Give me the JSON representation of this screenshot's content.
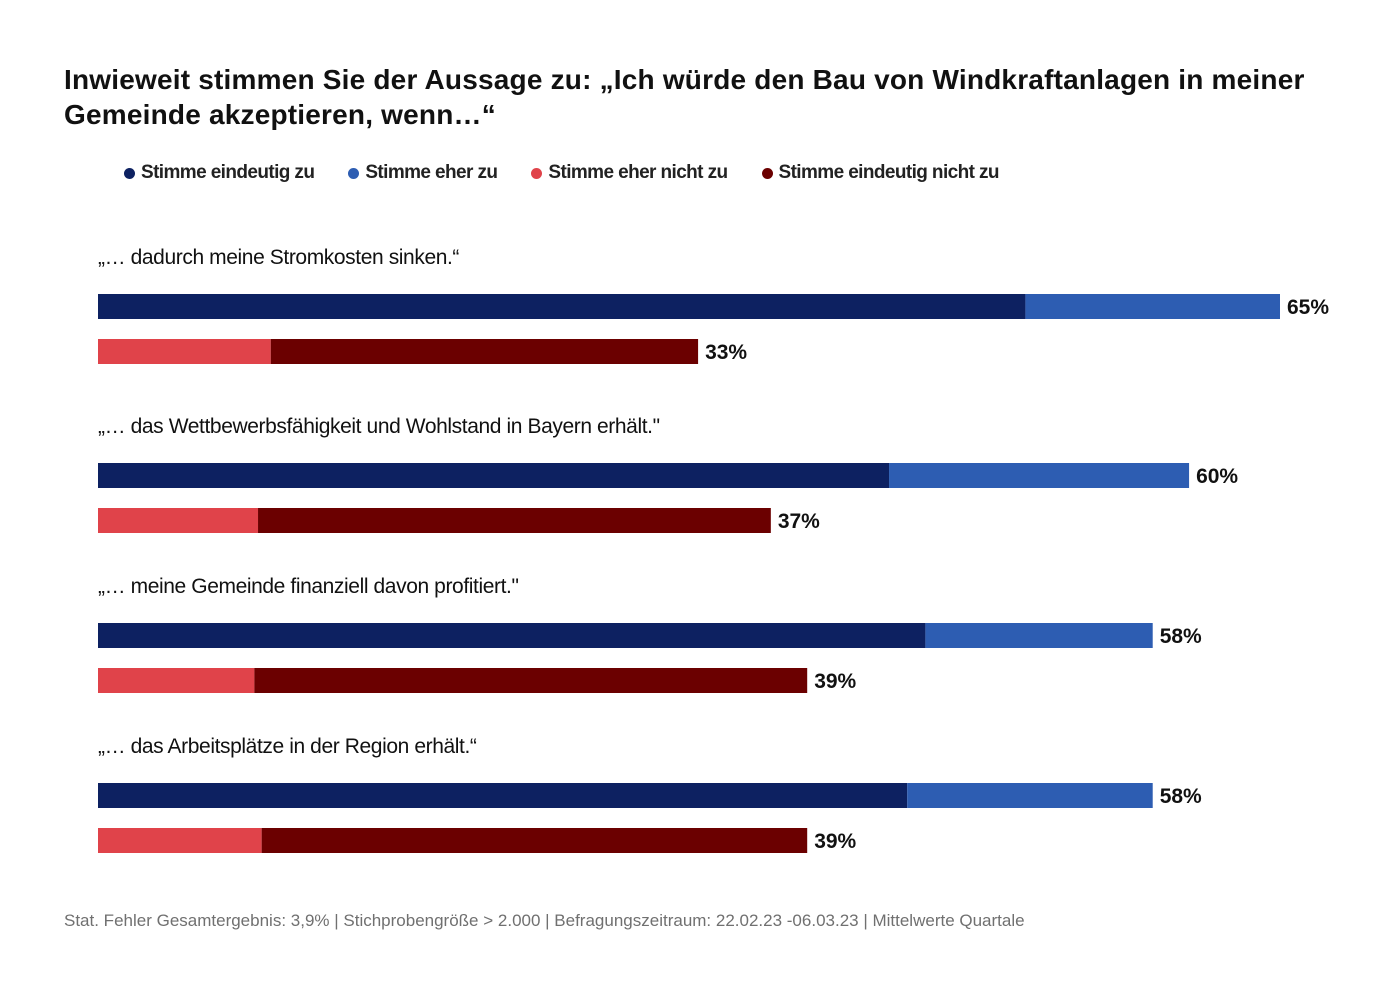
{
  "chart_data": {
    "type": "bar",
    "orientation": "horizontal",
    "stacked": true,
    "title": "Inwieweit stimmen Sie der Aussage zu: „Ich würde den Bau von Windkraftanlagen in meiner Gemeinde akzeptieren, wenn…“",
    "legend_position": "top",
    "legend": [
      {
        "name": "Stimme eindeutig zu",
        "color": "#0d2161"
      },
      {
        "name": "Stimme eher zu",
        "color": "#2d5db2"
      },
      {
        "name": "Stimme eher nicht zu",
        "color": "#e0434a"
      },
      {
        "name": "Stimme eindeutig nicht zu",
        "color": "#6b0000"
      }
    ],
    "x_max": 65,
    "categories": [
      "„… dadurch meine Stromkosten sinken.“",
      "„… das Wettbewerbsfähigkeit und Wohlstand in Bayern erhält.\"",
      "„… meine Gemeinde finanziell davon profitiert.\"",
      "„… das Arbeitsplätze in der Region erhält.“"
    ],
    "groups": [
      {
        "agree": {
          "segments": [
            51,
            14
          ],
          "total_label": "65%"
        },
        "disagree": {
          "segments": [
            9.5,
            23.5
          ],
          "total_label": "33%"
        }
      },
      {
        "agree": {
          "segments": [
            43.5,
            16.5
          ],
          "total_label": "60%"
        },
        "disagree": {
          "segments": [
            8.8,
            28.2
          ],
          "total_label": "37%"
        }
      },
      {
        "agree": {
          "segments": [
            45.5,
            12.5
          ],
          "total_label": "58%"
        },
        "disagree": {
          "segments": [
            8.6,
            30.4
          ],
          "total_label": "39%"
        }
      },
      {
        "agree": {
          "segments": [
            44.5,
            13.5
          ],
          "total_label": "58%"
        },
        "disagree": {
          "segments": [
            9,
            30
          ],
          "total_label": "39%"
        }
      }
    ]
  },
  "footer": "Stat. Fehler Gesamtergebnis:  3,9% | Stichprobengröße  > 2.000 | Befragungszeitraum:  22.02.23 -06.03.23 | Mittelwerte Quartale"
}
